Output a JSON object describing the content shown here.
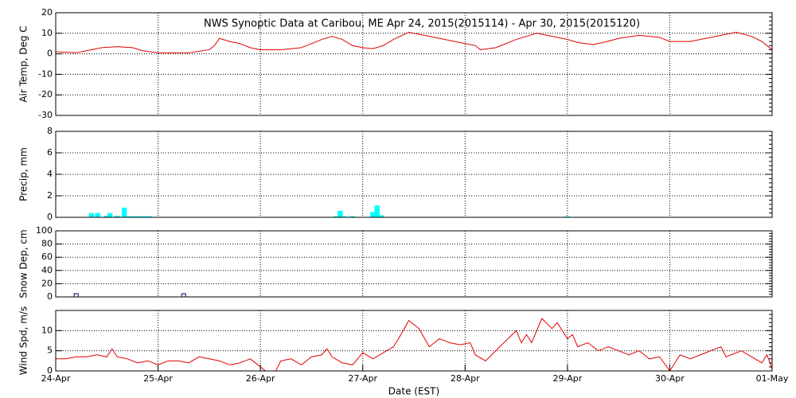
{
  "chart_data": [
    {
      "type": "line",
      "title": "NWS Synoptic Data at Caribou, ME   Apr 24, 2015(2015114) - Apr 30, 2015(2015120)",
      "ylabel": "Air Temp, Deg C",
      "color": "#e00000",
      "xlim": [
        0,
        7
      ],
      "ylim": [
        -30,
        20
      ],
      "yticks": [
        -30,
        -20,
        -10,
        0,
        10,
        20
      ],
      "grid": true,
      "x": [
        0,
        0.2,
        0.3,
        0.45,
        0.6,
        0.75,
        0.85,
        1.0,
        1.3,
        1.5,
        1.55,
        1.6,
        1.7,
        1.8,
        1.9,
        2.0,
        2.2,
        2.4,
        2.5,
        2.6,
        2.7,
        2.8,
        2.9,
        3.0,
        3.1,
        3.2,
        3.3,
        3.45,
        3.6,
        3.8,
        4.0,
        4.1,
        4.15,
        4.3,
        4.5,
        4.6,
        4.7,
        4.8,
        5.0,
        5.1,
        5.25,
        5.35,
        5.5,
        5.7,
        5.9,
        6.0,
        6.2,
        6.4,
        6.5,
        6.65,
        6.8,
        6.9,
        7.0
      ],
      "values": [
        1,
        0.5,
        1.5,
        3,
        3.5,
        3,
        1.5,
        0.5,
        0.5,
        2,
        4,
        7.5,
        6,
        5,
        3,
        2,
        2,
        3,
        5,
        7,
        8.5,
        7,
        4,
        3,
        2.5,
        4,
        7,
        10.5,
        9,
        7,
        5,
        4,
        2,
        3,
        7,
        8.5,
        10,
        9,
        7,
        5.5,
        4.5,
        5.5,
        7.5,
        9,
        8,
        6,
        6,
        8,
        9,
        10.5,
        8.5,
        6,
        2
      ]
    },
    {
      "type": "bar",
      "ylabel": "Precip, mm",
      "color": "#00ffff",
      "xlim": [
        0,
        7
      ],
      "ylim": [
        0,
        8
      ],
      "yticks": [
        0,
        2,
        4,
        6,
        8
      ],
      "grid": true,
      "x": [
        0.35,
        0.41,
        0.5,
        0.53,
        0.6,
        0.67,
        0.72,
        0.77,
        0.82,
        0.87,
        0.92,
        2.74,
        2.78,
        2.82,
        2.9,
        3.1,
        3.14,
        3.18,
        5.0
      ],
      "values": [
        0.4,
        0.4,
        0.15,
        0.4,
        0.15,
        0.9,
        0.1,
        0.1,
        0.1,
        0.1,
        0.1,
        0.1,
        0.6,
        0.1,
        0.1,
        0.5,
        1.1,
        0.2,
        0.1
      ]
    },
    {
      "type": "scatter",
      "ylabel": "Snow Dep, cm",
      "color": "#000080",
      "xlim": [
        0,
        7
      ],
      "ylim": [
        0,
        100
      ],
      "yticks": [
        0,
        20,
        40,
        60,
        80,
        100
      ],
      "grid": true,
      "x": [
        0.2,
        1.25
      ],
      "values": [
        0,
        0
      ]
    },
    {
      "type": "line",
      "ylabel": "Wind Spd, m/s",
      "xlabel": "Date (EST)",
      "color": "#e00000",
      "xlim": [
        0,
        7
      ],
      "ylim": [
        0,
        15
      ],
      "yticks": [
        0,
        5,
        10
      ],
      "grid": true,
      "xticks": [
        {
          "value": 0,
          "label": "24-Apr"
        },
        {
          "value": 1,
          "label": "25-Apr"
        },
        {
          "value": 2,
          "label": "26-Apr"
        },
        {
          "value": 3,
          "label": "27-Apr"
        },
        {
          "value": 4,
          "label": "28-Apr"
        },
        {
          "value": 5,
          "label": "29-Apr"
        },
        {
          "value": 6,
          "label": "30-Apr"
        },
        {
          "value": 7,
          "label": "01-May"
        }
      ],
      "x": [
        0,
        0.1,
        0.2,
        0.3,
        0.4,
        0.5,
        0.55,
        0.6,
        0.7,
        0.8,
        0.9,
        1.0,
        1.1,
        1.2,
        1.3,
        1.4,
        1.5,
        1.6,
        1.7,
        1.8,
        1.9,
        2.0,
        2.05,
        2.15,
        2.2,
        2.3,
        2.4,
        2.5,
        2.6,
        2.65,
        2.7,
        2.8,
        2.9,
        3.0,
        3.1,
        3.2,
        3.3,
        3.35,
        3.45,
        3.55,
        3.65,
        3.75,
        3.85,
        3.95,
        4.05,
        4.1,
        4.2,
        4.3,
        4.4,
        4.5,
        4.55,
        4.6,
        4.65,
        4.75,
        4.85,
        4.9,
        5.0,
        5.05,
        5.1,
        5.2,
        5.3,
        5.4,
        5.5,
        5.6,
        5.7,
        5.8,
        5.9,
        6.0,
        6.1,
        6.2,
        6.3,
        6.4,
        6.5,
        6.55,
        6.7,
        6.8,
        6.9,
        6.95,
        7.0
      ],
      "values": [
        3,
        3,
        3.5,
        3.5,
        4,
        3.5,
        5.5,
        3.5,
        3,
        2,
        2.5,
        1.5,
        2.5,
        2.5,
        2,
        3.5,
        3,
        2.5,
        1.5,
        2,
        3,
        1,
        0,
        0,
        2.5,
        3,
        1.5,
        3.5,
        4,
        5.5,
        3.5,
        2,
        1.5,
        4.5,
        3,
        4.5,
        6,
        8,
        12.5,
        10.5,
        6,
        8,
        7,
        6.5,
        7,
        4,
        2.5,
        5,
        7.5,
        10,
        7,
        9,
        7,
        13,
        10.5,
        12,
        8,
        9,
        6,
        7,
        5,
        6,
        5,
        4,
        5,
        3,
        3.5,
        0,
        4,
        3,
        4,
        5,
        6,
        3.5,
        5,
        3.5,
        2,
        4,
        0.5
      ]
    }
  ]
}
